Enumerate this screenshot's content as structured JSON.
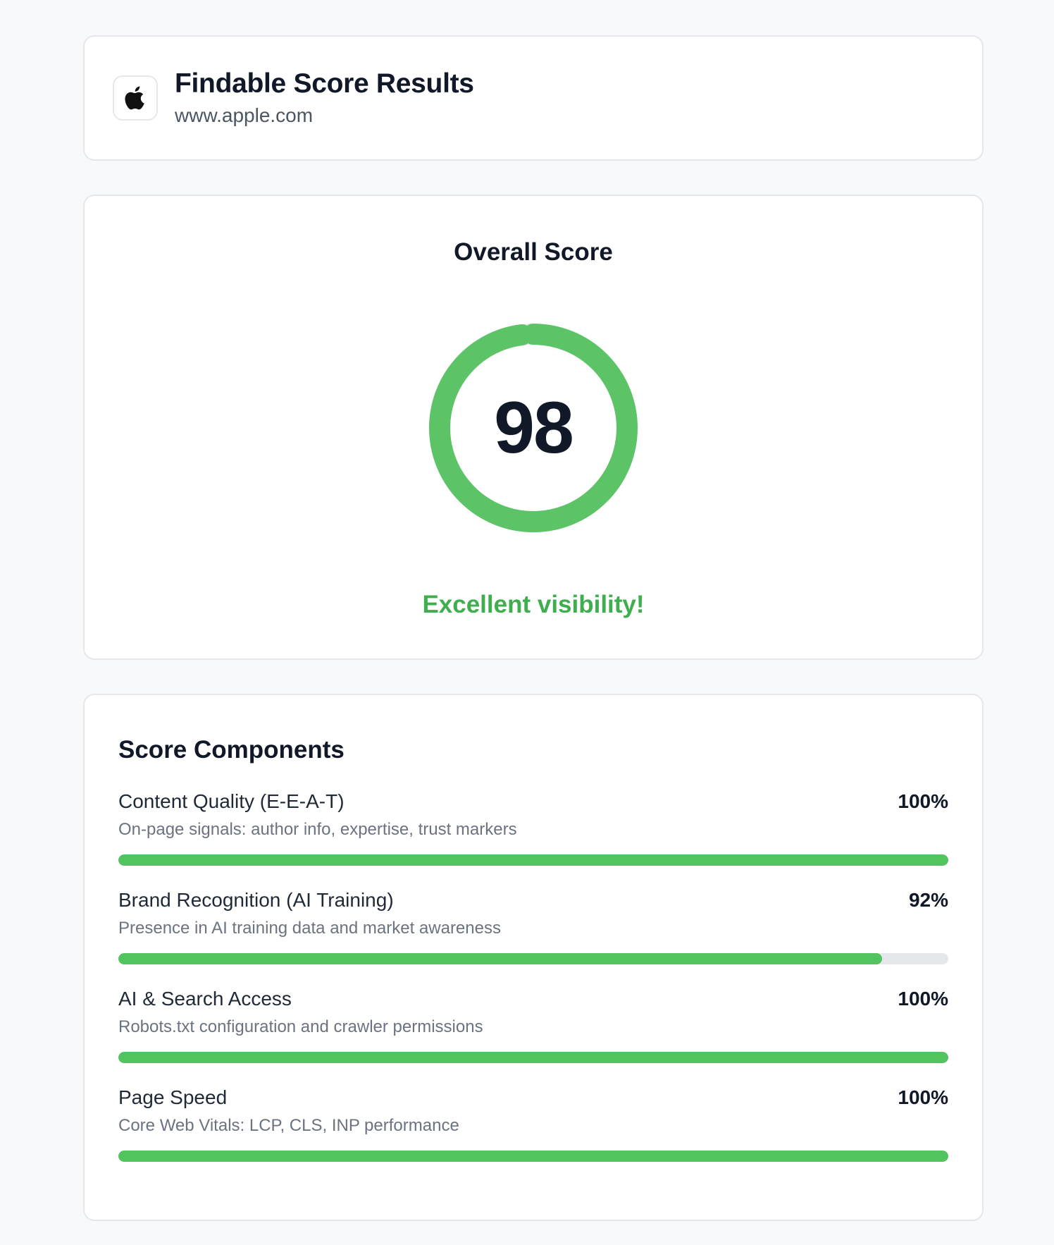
{
  "header": {
    "logo_icon": "apple-logo-icon",
    "title": "Findable Score Results",
    "url": "www.apple.com"
  },
  "overall": {
    "heading": "Overall Score",
    "score": "98",
    "score_fraction": 0.98,
    "message": "Excellent visibility!",
    "accent_color": "#5cc467",
    "message_color": "#3fae4f"
  },
  "components": {
    "heading": "Score Components",
    "bar_color": "#52c45f",
    "track_color": "#e5e7eb",
    "items": [
      {
        "name": "Content Quality (E-E-A-T)",
        "percent_label": "100%",
        "fraction": 1.0,
        "description": "On-page signals: author info, expertise, trust markers"
      },
      {
        "name": "Brand Recognition (AI Training)",
        "percent_label": "92%",
        "fraction": 0.92,
        "description": "Presence in AI training data and market awareness"
      },
      {
        "name": "AI & Search Access",
        "percent_label": "100%",
        "fraction": 1.0,
        "description": "Robots.txt configuration and crawler permissions"
      },
      {
        "name": "Page Speed",
        "percent_label": "100%",
        "fraction": 1.0,
        "description": "Core Web Vitals: LCP, CLS, INP performance"
      }
    ]
  }
}
